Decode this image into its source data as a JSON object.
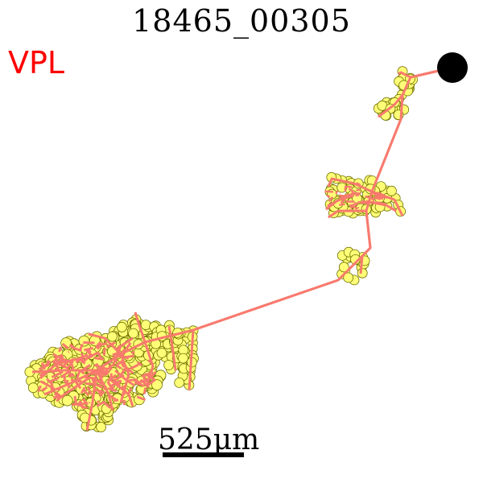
{
  "title": "18465_00305",
  "region_label": "VPL",
  "scale_bar": {
    "label": "525μm"
  },
  "colors": {
    "region": "#ff0000",
    "branch": "#f87a6e",
    "node_fill": "#ffff77",
    "node_stroke": "#6f6f00",
    "soma": "#000000"
  }
}
